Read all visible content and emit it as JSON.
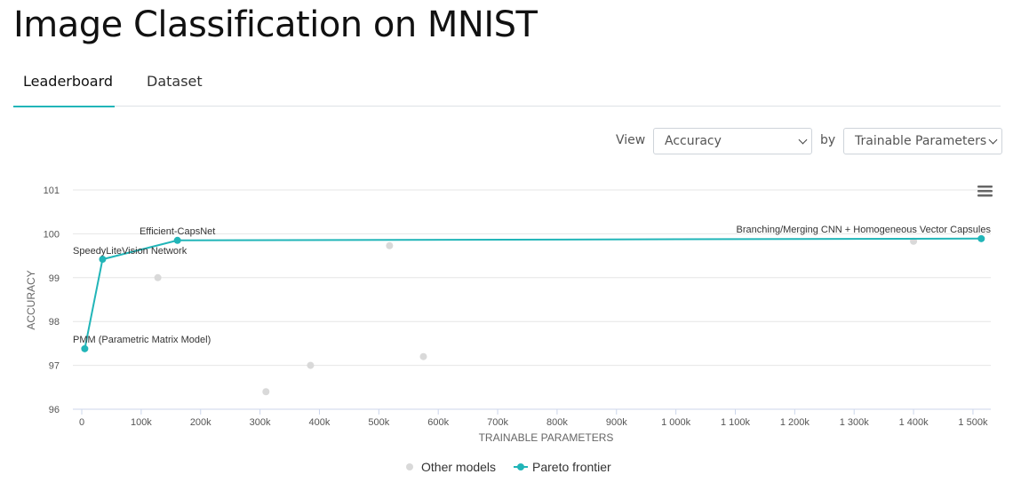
{
  "page": {
    "title": "Image Classification on MNIST"
  },
  "tabs": [
    {
      "label": "Leaderboard",
      "active": true
    },
    {
      "label": "Dataset",
      "active": false
    }
  ],
  "controls": {
    "view_label": "View",
    "metric_selected": "Accuracy",
    "by_label": "by",
    "x_selected": "Trainable Parameters"
  },
  "colors": {
    "accent": "#21b5b8",
    "other": "#d9d9d9"
  },
  "icons": {
    "menu": "hamburger-menu-icon"
  },
  "chart_data": {
    "type": "scatter",
    "xlabel": "TRAINABLE PARAMETERS",
    "ylabel": "ACCURACY",
    "xlim": [
      -15000,
      1530000
    ],
    "ylim": [
      96,
      101
    ],
    "x_ticks": [
      0,
      100000,
      200000,
      300000,
      400000,
      500000,
      600000,
      700000,
      800000,
      900000,
      1000000,
      1100000,
      1200000,
      1300000,
      1400000,
      1500000
    ],
    "x_tick_labels": [
      "0",
      "100k",
      "200k",
      "300k",
      "400k",
      "500k",
      "600k",
      "700k",
      "800k",
      "900k",
      "1 000k",
      "1 100k",
      "1 200k",
      "1 300k",
      "1 400k",
      "1 500k"
    ],
    "y_ticks": [
      96,
      97,
      98,
      99,
      100,
      101
    ],
    "y_tick_labels": [
      "96",
      "97",
      "98",
      "99",
      "100",
      "101"
    ],
    "grid": true,
    "legend": {
      "position": "bottom-center"
    },
    "series": [
      {
        "name": "Other models",
        "kind": "scatter",
        "points": [
          {
            "x": 128000,
            "y": 99.0
          },
          {
            "x": 310000,
            "y": 96.4
          },
          {
            "x": 385000,
            "y": 97.0
          },
          {
            "x": 518000,
            "y": 99.73
          },
          {
            "x": 575000,
            "y": 97.2
          },
          {
            "x": 1400000,
            "y": 99.83
          }
        ]
      },
      {
        "name": "Pareto frontier",
        "kind": "line",
        "points": [
          {
            "x": 5000,
            "y": 97.38,
            "label": "PMM (Parametric Matrix Model)"
          },
          {
            "x": 35000,
            "y": 99.42,
            "label": "SpeedyLiteVision Network"
          },
          {
            "x": 161000,
            "y": 99.85,
            "label": "Efficient-CapsNet"
          },
          {
            "x": 1514000,
            "y": 99.89,
            "label": "Branching/Merging CNN + Homogeneous Vector Capsules"
          }
        ]
      }
    ]
  }
}
